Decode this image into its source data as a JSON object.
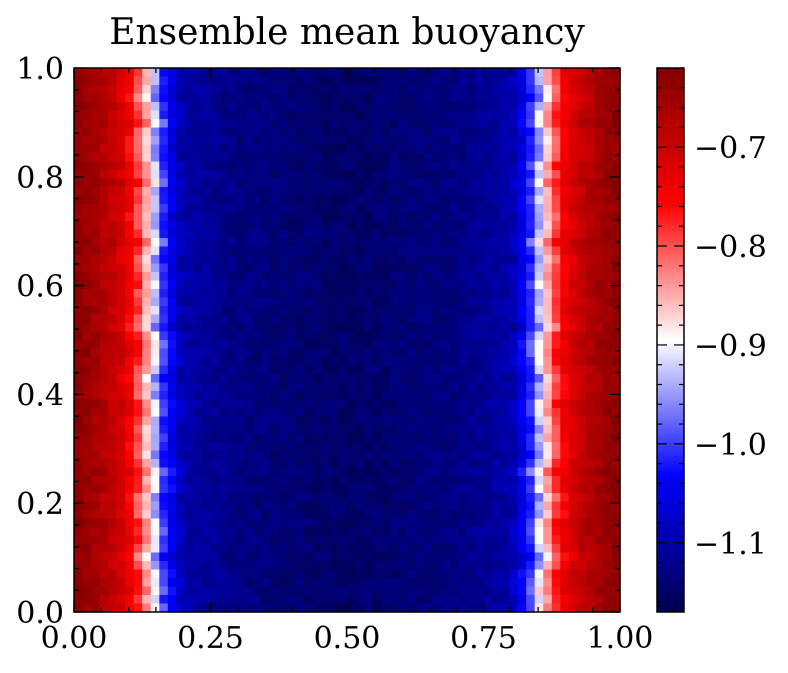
{
  "chart_data": {
    "type": "heatmap",
    "title": "Ensemble mean buoyancy",
    "xlabel": "",
    "ylabel": "",
    "xlim": [
      0.0,
      1.0
    ],
    "ylim": [
      0.0,
      1.0
    ],
    "x_ticks": [
      "0.00",
      "0.25",
      "0.50",
      "0.75",
      "1.00"
    ],
    "y_ticks": [
      "0.0",
      "0.2",
      "0.4",
      "0.6",
      "0.8",
      "1.0"
    ],
    "colormap": "seismic",
    "colorbar": {
      "vmin": -1.17,
      "vmax": -0.62,
      "ticks": [
        -1.1,
        -1.0,
        -0.9,
        -0.8,
        -0.7
      ],
      "tick_labels": [
        "−1.1",
        "−1.0",
        "−0.9",
        "−0.8",
        "−0.7"
      ]
    },
    "profile_x": [
      0.0,
      0.03,
      0.08,
      0.11,
      0.13,
      0.145,
      0.16,
      0.2,
      0.3,
      0.4,
      0.5,
      0.6,
      0.7,
      0.8,
      0.84,
      0.855,
      0.87,
      0.89,
      0.92,
      0.97,
      1.0
    ],
    "profile_values": [
      -0.63,
      -0.65,
      -0.7,
      -0.76,
      -0.84,
      -0.9,
      -1.0,
      -1.1,
      -1.13,
      -1.14,
      -1.15,
      -1.14,
      -1.13,
      -1.1,
      -1.0,
      -0.9,
      -0.84,
      -0.76,
      -0.7,
      -0.65,
      -0.63
    ],
    "note": "Values vary mainly with x (warm walls at x=0 and x=1, cold interior); nearly uniform in y."
  }
}
